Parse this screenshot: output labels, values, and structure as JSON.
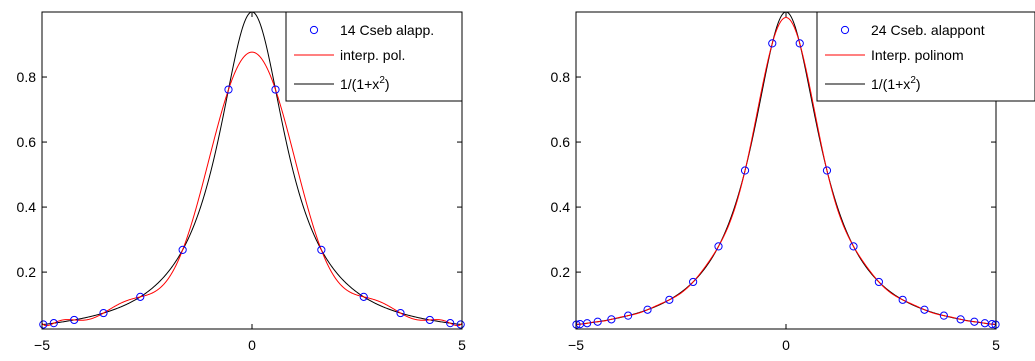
{
  "chart_data": [
    {
      "type": "line",
      "title": "",
      "xlabel": "",
      "ylabel": "",
      "xlim": [
        -5,
        5
      ],
      "ylim": [
        0.025,
        1.0
      ],
      "xticks": [
        -5,
        0,
        5
      ],
      "yticks": [
        0.2,
        0.4,
        0.6,
        0.8
      ],
      "xtick_labels": [
        "−5",
        "0",
        "5"
      ],
      "ytick_labels": [
        "0.2",
        "0.4",
        "0.6",
        "0.8"
      ],
      "grid": false,
      "legend_position": "top-right",
      "n_nodes": 14,
      "series": [
        {
          "name": "14 Cseb alapp.",
          "kind": "markers",
          "color": "#0000ff"
        },
        {
          "name": "interp. pol.",
          "kind": "interpolant",
          "color": "#ff0000"
        },
        {
          "name": "1/(1+x²)",
          "kind": "function",
          "color": "#000000",
          "legend_base": "1/(1+x",
          "legend_sup": "2",
          "legend_tail": ")"
        }
      ]
    },
    {
      "type": "line",
      "title": "",
      "xlabel": "",
      "ylabel": "",
      "xlim": [
        -5,
        5
      ],
      "ylim": [
        0.025,
        1.0
      ],
      "xticks": [
        -5,
        0,
        5
      ],
      "yticks": [
        0.2,
        0.4,
        0.6,
        0.8
      ],
      "xtick_labels": [
        "−5",
        "0",
        "5"
      ],
      "ytick_labels": [
        "0.2",
        "0.4",
        "0.6",
        "0.8"
      ],
      "grid": false,
      "legend_position": "top-right",
      "n_nodes": 24,
      "series": [
        {
          "name": "24 Cseb. alappont",
          "kind": "markers",
          "color": "#0000ff"
        },
        {
          "name": "Interp. polinom",
          "kind": "interpolant",
          "color": "#ff0000"
        },
        {
          "name": "1/(1+x²)",
          "kind": "function",
          "color": "#000000",
          "legend_base": "1/(1+x",
          "legend_sup": "2",
          "legend_tail": ")"
        }
      ]
    }
  ]
}
